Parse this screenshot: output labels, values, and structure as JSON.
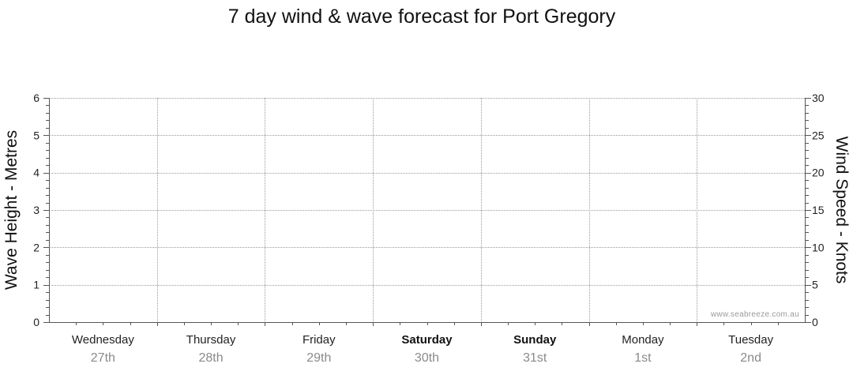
{
  "chart_data": {
    "type": "line",
    "title": "7 day wind & wave forecast for Port Gregory",
    "ylabel_left": "Wave Height - Metres",
    "ylabel_right": "Wind Speed - Knots",
    "ylim_left": [
      0,
      6
    ],
    "ylim_right": [
      0,
      30
    ],
    "yticks_left": [
      "0",
      "1",
      "2",
      "3",
      "4",
      "5",
      "6"
    ],
    "yticks_right": [
      "0",
      "5",
      "10",
      "15",
      "20",
      "25",
      "30"
    ],
    "grid": true,
    "days": [
      {
        "name": "Wednesday",
        "date": "27th",
        "bold": false
      },
      {
        "name": "Thursday",
        "date": "28th",
        "bold": false
      },
      {
        "name": "Friday",
        "date": "29th",
        "bold": false
      },
      {
        "name": "Saturday",
        "date": "30th",
        "bold": true
      },
      {
        "name": "Sunday",
        "date": "31st",
        "bold": true
      },
      {
        "name": "Monday",
        "date": "1st",
        "bold": false
      },
      {
        "name": "Tuesday",
        "date": "2nd",
        "bold": false
      }
    ],
    "series": []
  },
  "watermark": "www.seabreeze.com.au"
}
